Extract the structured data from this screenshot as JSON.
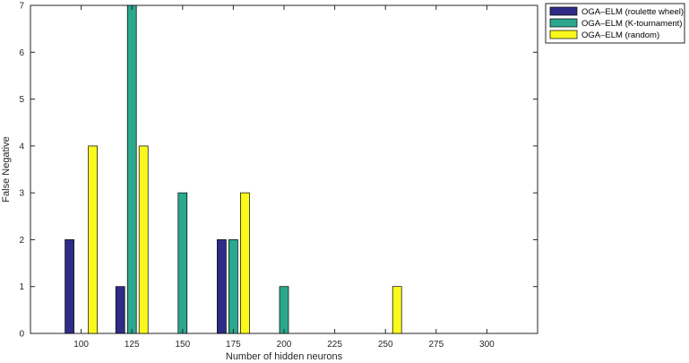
{
  "chart_data": {
    "type": "bar",
    "x": [
      100,
      125,
      150,
      175,
      200,
      225,
      250,
      275,
      300
    ],
    "xlabel": "Number of hidden neurons",
    "ylabel": "False Negative",
    "xlim": [
      75,
      325
    ],
    "ylim": [
      0,
      7
    ],
    "yticks": [
      0,
      1,
      2,
      3,
      4,
      5,
      6,
      7
    ],
    "grid": false,
    "legend_position": "top-right-outside",
    "series": [
      {
        "name": "OGA–ELM (roulette wheel)",
        "color": "#2e2c86",
        "values": [
          2,
          1,
          0,
          2,
          0,
          0,
          0,
          0,
          0
        ]
      },
      {
        "name": "OGA–ELM (K-tournament)",
        "color": "#2ba88e",
        "values": [
          0,
          7,
          3,
          2,
          1,
          0,
          0,
          0,
          0
        ]
      },
      {
        "name": "OGA–ELM (random)",
        "color": "#f9f91c",
        "values": [
          4,
          4,
          0,
          3,
          0,
          0,
          1,
          0,
          0
        ]
      }
    ]
  }
}
